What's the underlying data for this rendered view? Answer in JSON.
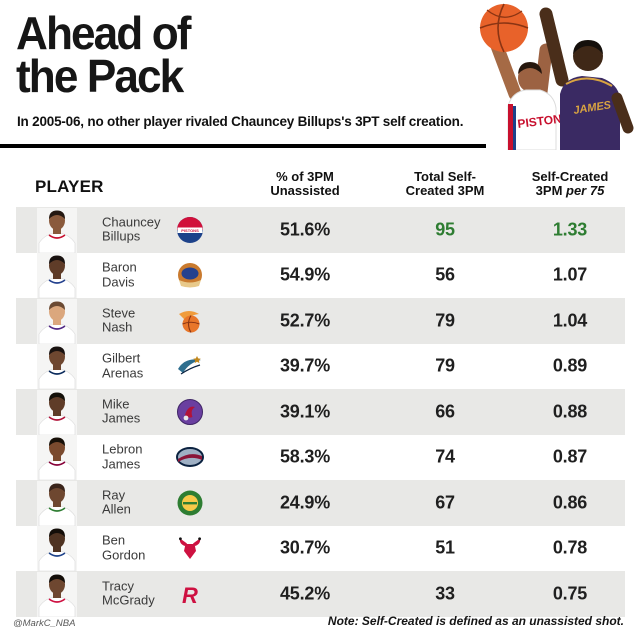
{
  "header": {
    "title_line1": "Ahead of",
    "title_line2": "the Pack",
    "subtitle": "In 2005-06, no other player rivaled Chauncey Billups's 3PT self creation.",
    "hero": {
      "shooter_jersey_text": "PISTONS",
      "defender_jersey_text": "JAMES",
      "ball_color": "#e8622a",
      "shooter_jersey_color": "#ffffff",
      "defender_jersey_color": "#3a2a63",
      "jersey_letter_color": "#d9a441"
    }
  },
  "table": {
    "columns": {
      "player": "PLAYER",
      "col1_line1": "% of 3PM",
      "col1_line2": "Unassisted",
      "col2_line1": "Total Self-",
      "col2_line2": "Created 3PM",
      "col3_line1": "Self-Created",
      "col3_line2a": "3PM ",
      "col3_line2b": "per 75"
    },
    "highlight_color": "#2e7d32",
    "row_alt_color": "#e8e8e6",
    "rows": [
      {
        "first": "Chauncey",
        "last": "Billups",
        "logo": "pistons",
        "pct": "51.6%",
        "total": "95",
        "per75": "1.33",
        "highlight": true,
        "logo_colors": [
          "#d1103a",
          "#1d428a",
          "#ffffff"
        ],
        "photo": {
          "skin": "#8a5a3c",
          "hair": "#241811",
          "jersey": "#ffffff",
          "trim": "#c8102e"
        }
      },
      {
        "first": "Baron",
        "last": "Davis",
        "logo": "warriors",
        "pct": "54.9%",
        "total": "56",
        "per75": "1.07",
        "highlight": false,
        "logo_colors": [
          "#c97a2e",
          "#24418e",
          "#e8c98a"
        ],
        "photo": {
          "skin": "#5f3c28",
          "hair": "#191210",
          "jersey": "#ffffff",
          "trim": "#24418e"
        }
      },
      {
        "first": "Steve",
        "last": "Nash",
        "logo": "suns",
        "pct": "52.7%",
        "total": "79",
        "per75": "1.04",
        "highlight": false,
        "logo_colors": [
          "#e8762a",
          "#f09c3c",
          "#8a3413"
        ],
        "photo": {
          "skin": "#dba77d",
          "hair": "#6b4a33",
          "jersey": "#ffffff",
          "trim": "#4f2683"
        }
      },
      {
        "first": "Gilbert",
        "last": "Arenas",
        "logo": "wizards",
        "pct": "39.7%",
        "total": "79",
        "per75": "0.89",
        "highlight": false,
        "logo_colors": [
          "#2f6f8f",
          "#c2881d",
          "#0b2240"
        ],
        "photo": {
          "skin": "#6e4730",
          "hair": "#191210",
          "jersey": "#ffffff",
          "trim": "#0b2b5c"
        }
      },
      {
        "first": "Mike",
        "last": "James",
        "logo": "raptors",
        "pct": "39.1%",
        "total": "66",
        "per75": "0.88",
        "highlight": false,
        "logo_colors": [
          "#6a3fa0",
          "#b11339",
          "#e8e8e8"
        ],
        "photo": {
          "skin": "#5f3c28",
          "hair": "#141009",
          "jersey": "#ffffff",
          "trim": "#b11339"
        }
      },
      {
        "first": "Lebron",
        "last": "James",
        "logo": "cavaliers",
        "pct": "58.3%",
        "total": "74",
        "per75": "0.87",
        "highlight": false,
        "logo_colors": [
          "#0b2240",
          "#8a1538",
          "#9fb0c4"
        ],
        "photo": {
          "skin": "#7a4a2e",
          "hair": "#171008",
          "jersey": "#ffffff",
          "trim": "#860038"
        }
      },
      {
        "first": "Ray",
        "last": "Allen",
        "logo": "sonics",
        "pct": "24.9%",
        "total": "67",
        "per75": "0.86",
        "highlight": false,
        "logo_colors": [
          "#2e7d32",
          "#f7c948",
          "#2e7d32"
        ],
        "photo": {
          "skin": "#6e4730",
          "hair": "#3a241a",
          "jersey": "#ffffff",
          "trim": "#2e7d32"
        }
      },
      {
        "first": "Ben",
        "last": "Gordon",
        "logo": "bulls",
        "pct": "30.7%",
        "total": "51",
        "per75": "0.78",
        "highlight": false,
        "logo_colors": [
          "#ce1141",
          "#111111",
          "#ce1141"
        ],
        "photo": {
          "skin": "#4f3322",
          "hair": "#140e09",
          "jersey": "#ffffff",
          "trim": "#1d428a"
        }
      },
      {
        "first": "Tracy",
        "last": "McGrady",
        "logo": "rockets",
        "pct": "45.2%",
        "total": "33",
        "per75": "0.75",
        "highlight": false,
        "logo_colors": [
          "#ce1141",
          "#ce1141",
          "#ffffff"
        ],
        "photo": {
          "skin": "#6e4730",
          "hair": "#140e09",
          "jersey": "#ffffff",
          "trim": "#ce1141"
        }
      }
    ]
  },
  "footer": {
    "credit": "@MarkC_NBA",
    "note": "Note: Self-Created is defined as an unassisted shot."
  }
}
